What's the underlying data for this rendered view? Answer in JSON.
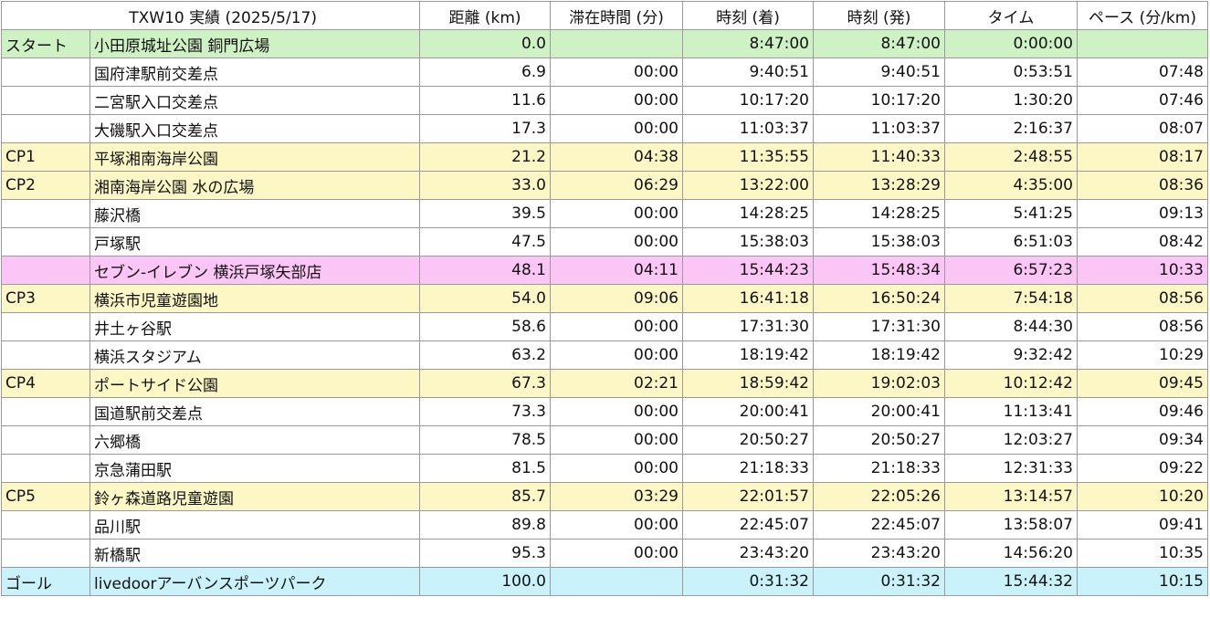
{
  "header": {
    "title": "TXW10 実績 (2025/5/17)",
    "distance": "距離 (km)",
    "stay": "滞在時間 (分)",
    "arrive": "時刻 (着)",
    "depart": "時刻 (発)",
    "time": "タイム",
    "pace": "ペース (分/km)"
  },
  "colors": {
    "start": "#cff2c4",
    "checkpoint": "#fdf7c6",
    "store": "#fbc6f5",
    "goal": "#c9f2fa",
    "plain": "#ffffff"
  },
  "rows": [
    {
      "label": "スタート",
      "place": "小田原城址公園 銅門広場",
      "dist": "0.0",
      "stay": "",
      "arrive": "8:47:00",
      "depart": "8:47:00",
      "time": "0:00:00",
      "pace": "",
      "style": "green"
    },
    {
      "label": "",
      "place": "国府津駅前交差点",
      "dist": "6.9",
      "stay": "00:00",
      "arrive": "9:40:51",
      "depart": "9:40:51",
      "time": "0:53:51",
      "pace": "07:48",
      "style": "plain"
    },
    {
      "label": "",
      "place": "二宮駅入口交差点",
      "dist": "11.6",
      "stay": "00:00",
      "arrive": "10:17:20",
      "depart": "10:17:20",
      "time": "1:30:20",
      "pace": "07:46",
      "style": "plain"
    },
    {
      "label": "",
      "place": "大磯駅入口交差点",
      "dist": "17.3",
      "stay": "00:00",
      "arrive": "11:03:37",
      "depart": "11:03:37",
      "time": "2:16:37",
      "pace": "08:07",
      "style": "plain"
    },
    {
      "label": "CP1",
      "place": "平塚湘南海岸公園",
      "dist": "21.2",
      "stay": "04:38",
      "arrive": "11:35:55",
      "depart": "11:40:33",
      "time": "2:48:55",
      "pace": "08:17",
      "style": "yellow"
    },
    {
      "label": "CP2",
      "place": "湘南海岸公園 水の広場",
      "dist": "33.0",
      "stay": "06:29",
      "arrive": "13:22:00",
      "depart": "13:28:29",
      "time": "4:35:00",
      "pace": "08:36",
      "style": "yellow"
    },
    {
      "label": "",
      "place": "藤沢橋",
      "dist": "39.5",
      "stay": "00:00",
      "arrive": "14:28:25",
      "depart": "14:28:25",
      "time": "5:41:25",
      "pace": "09:13",
      "style": "plain"
    },
    {
      "label": "",
      "place": "戸塚駅",
      "dist": "47.5",
      "stay": "00:00",
      "arrive": "15:38:03",
      "depart": "15:38:03",
      "time": "6:51:03",
      "pace": "08:42",
      "style": "plain"
    },
    {
      "label": "",
      "place": "セブン-イレブン 横浜戸塚矢部店",
      "dist": "48.1",
      "stay": "04:11",
      "arrive": "15:44:23",
      "depart": "15:48:34",
      "time": "6:57:23",
      "pace": "10:33",
      "style": "pink"
    },
    {
      "label": "CP3",
      "place": "横浜市児童遊園地",
      "dist": "54.0",
      "stay": "09:06",
      "arrive": "16:41:18",
      "depart": "16:50:24",
      "time": "7:54:18",
      "pace": "08:56",
      "style": "yellow"
    },
    {
      "label": "",
      "place": "井土ヶ谷駅",
      "dist": "58.6",
      "stay": "00:00",
      "arrive": "17:31:30",
      "depart": "17:31:30",
      "time": "8:44:30",
      "pace": "08:56",
      "style": "plain"
    },
    {
      "label": "",
      "place": "横浜スタジアム",
      "dist": "63.2",
      "stay": "00:00",
      "arrive": "18:19:42",
      "depart": "18:19:42",
      "time": "9:32:42",
      "pace": "10:29",
      "style": "plain"
    },
    {
      "label": "CP4",
      "place": "ポートサイド公園",
      "dist": "67.3",
      "stay": "02:21",
      "arrive": "18:59:42",
      "depart": "19:02:03",
      "time": "10:12:42",
      "pace": "09:45",
      "style": "yellow"
    },
    {
      "label": "",
      "place": "国道駅前交差点",
      "dist": "73.3",
      "stay": "00:00",
      "arrive": "20:00:41",
      "depart": "20:00:41",
      "time": "11:13:41",
      "pace": "09:46",
      "style": "plain"
    },
    {
      "label": "",
      "place": "六郷橋",
      "dist": "78.5",
      "stay": "00:00",
      "arrive": "20:50:27",
      "depart": "20:50:27",
      "time": "12:03:27",
      "pace": "09:34",
      "style": "plain"
    },
    {
      "label": "",
      "place": "京急蒲田駅",
      "dist": "81.5",
      "stay": "00:00",
      "arrive": "21:18:33",
      "depart": "21:18:33",
      "time": "12:31:33",
      "pace": "09:22",
      "style": "plain"
    },
    {
      "label": "CP5",
      "place": "鈴ヶ森道路児童遊園",
      "dist": "85.7",
      "stay": "03:29",
      "arrive": "22:01:57",
      "depart": "22:05:26",
      "time": "13:14:57",
      "pace": "10:20",
      "style": "yellow"
    },
    {
      "label": "",
      "place": "品川駅",
      "dist": "89.8",
      "stay": "00:00",
      "arrive": "22:45:07",
      "depart": "22:45:07",
      "time": "13:58:07",
      "pace": "09:41",
      "style": "plain"
    },
    {
      "label": "",
      "place": "新橋駅",
      "dist": "95.3",
      "stay": "00:00",
      "arrive": "23:43:20",
      "depart": "23:43:20",
      "time": "14:56:20",
      "pace": "10:35",
      "style": "plain"
    },
    {
      "label": "ゴール",
      "place": "livedoorアーバンスポーツパーク",
      "dist": "100.0",
      "stay": "",
      "arrive": "0:31:32",
      "depart": "0:31:32",
      "time": "15:44:32",
      "pace": "10:15",
      "style": "cyan"
    }
  ]
}
